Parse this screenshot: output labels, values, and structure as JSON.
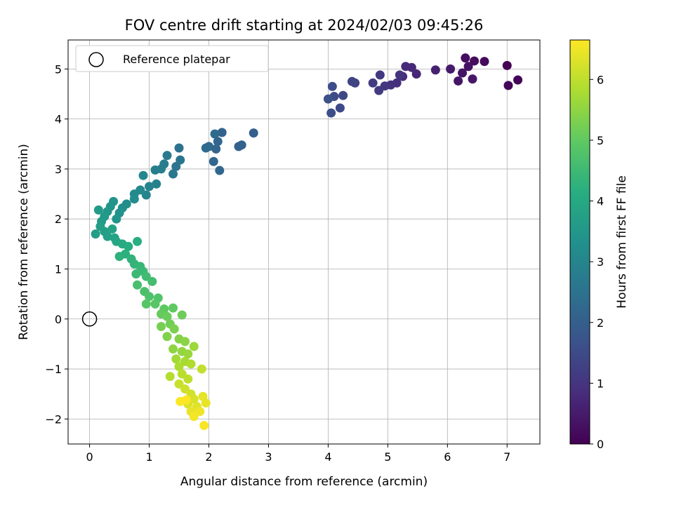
{
  "chart_data": {
    "type": "scatter",
    "title": "FOV centre drift starting at 2024/02/03 09:45:26",
    "xlabel": "Angular distance from reference (arcmin)",
    "ylabel": "Rotation from reference (arcmin)",
    "xlim": [
      -0.36,
      7.55
    ],
    "ylim": [
      -2.5,
      5.58
    ],
    "xticks": [
      "0",
      "1",
      "2",
      "3",
      "4",
      "5",
      "6",
      "7"
    ],
    "yticks": [
      "−2",
      "−1",
      "0",
      "1",
      "2",
      "3",
      "4",
      "5"
    ],
    "grid": true,
    "legend": {
      "position": "upper-left",
      "entries": [
        {
          "label": "Reference platepar",
          "marker": "open-circle"
        }
      ]
    },
    "reference_point": {
      "x": 0.0,
      "y": 0.0
    },
    "colorbar": {
      "label": "Hours from first FF file",
      "colormap": "viridis",
      "range": [
        0,
        6.65
      ],
      "ticks": [
        "0",
        "1",
        "2",
        "3",
        "4",
        "5",
        "6"
      ]
    },
    "series": [
      {
        "columns": [
          "x",
          "y",
          "hours"
        ],
        "points": [
          [
            7.0,
            5.07,
            0.05
          ],
          [
            7.18,
            4.78,
            0.08
          ],
          [
            7.02,
            4.67,
            0.1
          ],
          [
            6.62,
            5.15,
            0.15
          ],
          [
            6.45,
            5.16,
            0.2
          ],
          [
            6.3,
            5.22,
            0.25
          ],
          [
            6.35,
            5.05,
            0.3
          ],
          [
            6.25,
            4.92,
            0.35
          ],
          [
            6.18,
            4.76,
            0.4
          ],
          [
            6.42,
            4.8,
            0.42
          ],
          [
            6.05,
            5.0,
            0.5
          ],
          [
            5.8,
            4.98,
            0.6
          ],
          [
            5.48,
            4.9,
            0.7
          ],
          [
            5.4,
            5.03,
            0.75
          ],
          [
            5.3,
            5.05,
            0.78
          ],
          [
            5.25,
            4.85,
            0.85
          ],
          [
            5.15,
            4.72,
            0.9
          ],
          [
            5.05,
            4.68,
            0.95
          ],
          [
            5.2,
            4.88,
            1.0
          ],
          [
            4.95,
            4.66,
            1.05
          ],
          [
            4.87,
            4.88,
            1.1
          ],
          [
            4.85,
            4.57,
            1.15
          ],
          [
            4.75,
            4.72,
            1.2
          ],
          [
            4.45,
            4.72,
            1.3
          ],
          [
            4.4,
            4.75,
            1.35
          ],
          [
            4.25,
            4.47,
            1.42
          ],
          [
            4.2,
            4.22,
            1.48
          ],
          [
            4.1,
            4.45,
            1.5
          ],
          [
            4.07,
            4.65,
            1.55
          ],
          [
            4.05,
            4.12,
            1.6
          ],
          [
            4.0,
            4.4,
            1.62
          ],
          [
            2.75,
            3.72,
            2.0
          ],
          [
            2.55,
            3.48,
            2.05
          ],
          [
            2.5,
            3.45,
            2.08
          ],
          [
            2.22,
            3.73,
            2.1
          ],
          [
            2.15,
            3.55,
            2.15
          ],
          [
            2.12,
            3.4,
            2.18
          ],
          [
            2.08,
            3.15,
            2.2
          ],
          [
            2.18,
            2.97,
            2.22
          ],
          [
            2.0,
            3.45,
            2.25
          ],
          [
            1.95,
            3.42,
            2.3
          ],
          [
            2.1,
            3.7,
            2.32
          ],
          [
            1.5,
            3.42,
            2.5
          ],
          [
            1.52,
            3.18,
            2.55
          ],
          [
            1.45,
            3.05,
            2.6
          ],
          [
            1.4,
            2.9,
            2.65
          ],
          [
            1.3,
            3.27,
            2.7
          ],
          [
            1.25,
            3.1,
            2.75
          ],
          [
            1.2,
            3.0,
            2.8
          ],
          [
            1.1,
            2.98,
            2.85
          ],
          [
            1.12,
            2.7,
            2.9
          ],
          [
            1.0,
            2.65,
            2.95
          ],
          [
            0.95,
            2.48,
            3.0
          ],
          [
            0.9,
            2.87,
            3.05
          ],
          [
            0.85,
            2.58,
            3.1
          ],
          [
            0.75,
            2.5,
            3.15
          ],
          [
            0.75,
            2.4,
            3.2
          ],
          [
            0.62,
            2.3,
            3.25
          ],
          [
            0.55,
            2.22,
            3.3
          ],
          [
            0.5,
            2.12,
            3.35
          ],
          [
            0.45,
            2.0,
            3.4
          ],
          [
            0.4,
            2.35,
            3.42
          ],
          [
            0.35,
            2.25,
            3.45
          ],
          [
            0.3,
            2.15,
            3.5
          ],
          [
            0.25,
            2.05,
            3.55
          ],
          [
            0.2,
            1.95,
            3.6
          ],
          [
            0.15,
            2.18,
            3.62
          ],
          [
            0.1,
            1.7,
            3.65
          ],
          [
            0.18,
            1.85,
            3.7
          ],
          [
            0.25,
            1.75,
            3.72
          ],
          [
            0.3,
            1.65,
            3.75
          ],
          [
            0.38,
            1.8,
            3.8
          ],
          [
            0.42,
            1.62,
            3.85
          ],
          [
            0.45,
            1.55,
            3.9
          ],
          [
            0.55,
            1.5,
            4.0
          ],
          [
            0.65,
            1.45,
            4.1
          ],
          [
            0.8,
            1.55,
            4.15
          ],
          [
            0.6,
            1.3,
            4.2
          ],
          [
            0.5,
            1.25,
            4.25
          ],
          [
            0.7,
            1.2,
            4.3
          ],
          [
            0.75,
            1.1,
            4.35
          ],
          [
            0.85,
            1.05,
            4.4
          ],
          [
            0.9,
            0.95,
            4.45
          ],
          [
            0.78,
            0.9,
            4.5
          ],
          [
            0.95,
            0.85,
            4.55
          ],
          [
            1.05,
            0.75,
            4.6
          ],
          [
            0.8,
            0.68,
            4.65
          ],
          [
            0.92,
            0.55,
            4.7
          ],
          [
            1.0,
            0.45,
            4.75
          ],
          [
            1.15,
            0.42,
            4.8
          ],
          [
            0.95,
            0.3,
            4.85
          ],
          [
            1.1,
            0.3,
            4.9
          ],
          [
            1.25,
            0.2,
            4.95
          ],
          [
            1.4,
            0.22,
            5.0
          ],
          [
            1.2,
            0.1,
            5.05
          ],
          [
            1.3,
            0.05,
            5.1
          ],
          [
            1.55,
            0.08,
            5.15
          ],
          [
            1.35,
            -0.1,
            5.2
          ],
          [
            1.2,
            -0.15,
            5.25
          ],
          [
            1.42,
            -0.2,
            5.3
          ],
          [
            1.3,
            -0.35,
            5.35
          ],
          [
            1.5,
            -0.4,
            5.4
          ],
          [
            1.6,
            -0.45,
            5.45
          ],
          [
            1.4,
            -0.6,
            5.5
          ],
          [
            1.55,
            -0.65,
            5.55
          ],
          [
            1.65,
            -0.7,
            5.6
          ],
          [
            1.75,
            -0.55,
            5.65
          ],
          [
            1.45,
            -0.8,
            5.7
          ],
          [
            1.6,
            -0.85,
            5.75
          ],
          [
            1.5,
            -0.95,
            5.8
          ],
          [
            1.7,
            -0.9,
            5.85
          ],
          [
            1.35,
            -1.15,
            5.9
          ],
          [
            1.55,
            -1.1,
            5.95
          ],
          [
            1.65,
            -1.2,
            6.0
          ],
          [
            1.88,
            -1.0,
            6.05
          ],
          [
            1.5,
            -1.3,
            6.1
          ],
          [
            1.6,
            -1.4,
            6.15
          ],
          [
            1.7,
            -1.5,
            6.2
          ],
          [
            1.75,
            -1.6,
            6.25
          ],
          [
            1.65,
            -1.7,
            6.3
          ],
          [
            1.8,
            -1.75,
            6.35
          ],
          [
            1.9,
            -1.55,
            6.4
          ],
          [
            1.95,
            -1.68,
            6.42
          ],
          [
            1.7,
            -1.85,
            6.45
          ],
          [
            1.85,
            -1.85,
            6.5
          ],
          [
            1.75,
            -1.95,
            6.55
          ],
          [
            1.92,
            -2.13,
            6.6
          ],
          [
            1.52,
            -1.65,
            6.62
          ],
          [
            1.62,
            -1.62,
            6.64
          ]
        ]
      }
    ]
  }
}
